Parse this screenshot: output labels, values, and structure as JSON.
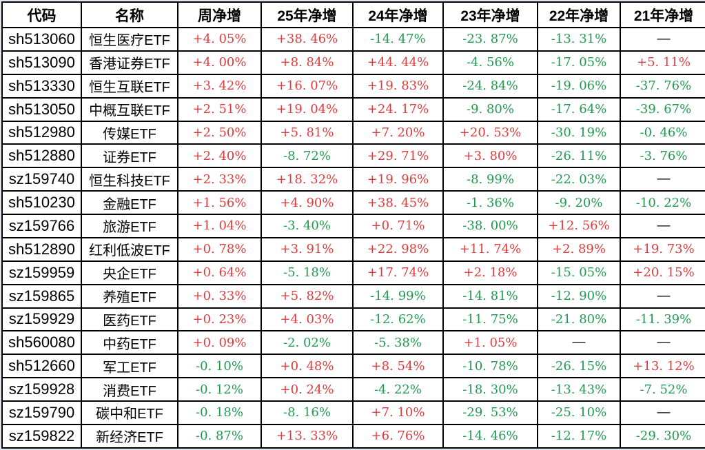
{
  "colors": {
    "positive_red": "#dd3c3c",
    "negative_green": "#219b50",
    "grid_line": "#000000",
    "outer_gridline": "#dfe8f2",
    "header_text": "#000000"
  },
  "missing_value_placeholder": "—",
  "table": {
    "columns": [
      "代码",
      "名称",
      "周净增",
      "25年净增",
      "24年净增",
      "23年净增",
      "22年净增",
      "21年净增"
    ],
    "rows": [
      [
        "sh513060",
        "恒生医疗ETF",
        "+4. 05%",
        "+38. 46%",
        "-14. 47%",
        "-23. 87%",
        "-13. 31%",
        "—"
      ],
      [
        "sh513090",
        "香港证券ETF",
        "+4. 00%",
        "+8. 84%",
        "+44. 44%",
        "-4. 56%",
        "-17. 05%",
        "+5. 11%"
      ],
      [
        "sh513330",
        "恒生互联ETF",
        "+3. 42%",
        "+16. 07%",
        "+19. 83%",
        "-24. 84%",
        "-19. 06%",
        "-37. 76%"
      ],
      [
        "sh513050",
        "中概互联ETF",
        "+2. 51%",
        "+19. 04%",
        "+24. 17%",
        "-9. 80%",
        "-17. 64%",
        "-39. 67%"
      ],
      [
        "sh512980",
        "传媒ETF",
        "+2. 50%",
        "+5. 81%",
        "+7. 20%",
        "+20. 53%",
        "-30. 19%",
        "-0. 46%"
      ],
      [
        "sh512880",
        "证券ETF",
        "+2. 40%",
        "-8. 72%",
        "+29. 71%",
        "+3. 80%",
        "-26. 11%",
        "-3. 76%"
      ],
      [
        "sz159740",
        "恒生科技ETF",
        "+2. 33%",
        "+18. 32%",
        "+19. 96%",
        "-8. 99%",
        "-22. 03%",
        "—"
      ],
      [
        "sh510230",
        "金融ETF",
        "+1. 56%",
        "+4. 90%",
        "+38. 45%",
        "-1. 36%",
        "-9. 20%",
        "-10. 22%"
      ],
      [
        "sz159766",
        "旅游ETF",
        "+1. 04%",
        "-3. 40%",
        "+0. 71%",
        "-38. 00%",
        "+12. 56%",
        "—"
      ],
      [
        "sh512890",
        "红利低波ETF",
        "+0. 78%",
        "+3. 91%",
        "+22. 98%",
        "+11. 74%",
        "+2. 89%",
        "+19. 73%"
      ],
      [
        "sz159959",
        "央企ETF",
        "+0. 64%",
        "-5. 18%",
        "+17. 74%",
        "+2. 18%",
        "-15. 05%",
        "+20. 15%"
      ],
      [
        "sz159865",
        "养殖ETF",
        "+0. 33%",
        "+5. 82%",
        "-14. 99%",
        "-14. 81%",
        "-12. 90%",
        "—"
      ],
      [
        "sz159929",
        "医药ETF",
        "+0. 23%",
        "+4. 03%",
        "-12. 62%",
        "-11. 75%",
        "-21. 80%",
        "-11. 39%"
      ],
      [
        "sh560080",
        "中药ETF",
        "+0. 09%",
        "-2. 02%",
        "-5. 38%",
        "+1. 05%",
        "—",
        "—"
      ],
      [
        "sh512660",
        "军工ETF",
        "-0. 10%",
        "+0. 48%",
        "+8. 54%",
        "-10. 78%",
        "-26. 15%",
        "+13. 12%"
      ],
      [
        "sz159928",
        "消费ETF",
        "-0. 12%",
        "+0. 24%",
        "-4. 22%",
        "-18. 30%",
        "-13. 43%",
        "-7. 52%"
      ],
      [
        "sz159790",
        "碳中和ETF",
        "-0. 18%",
        "-8. 16%",
        "+7. 10%",
        "-29. 53%",
        "-25. 10%",
        "—"
      ],
      [
        "sz159822",
        "新经济ETF",
        "-0. 87%",
        "+13. 33%",
        "+6. 76%",
        "-14. 46%",
        "-12. 17%",
        "-29. 30%"
      ]
    ]
  }
}
